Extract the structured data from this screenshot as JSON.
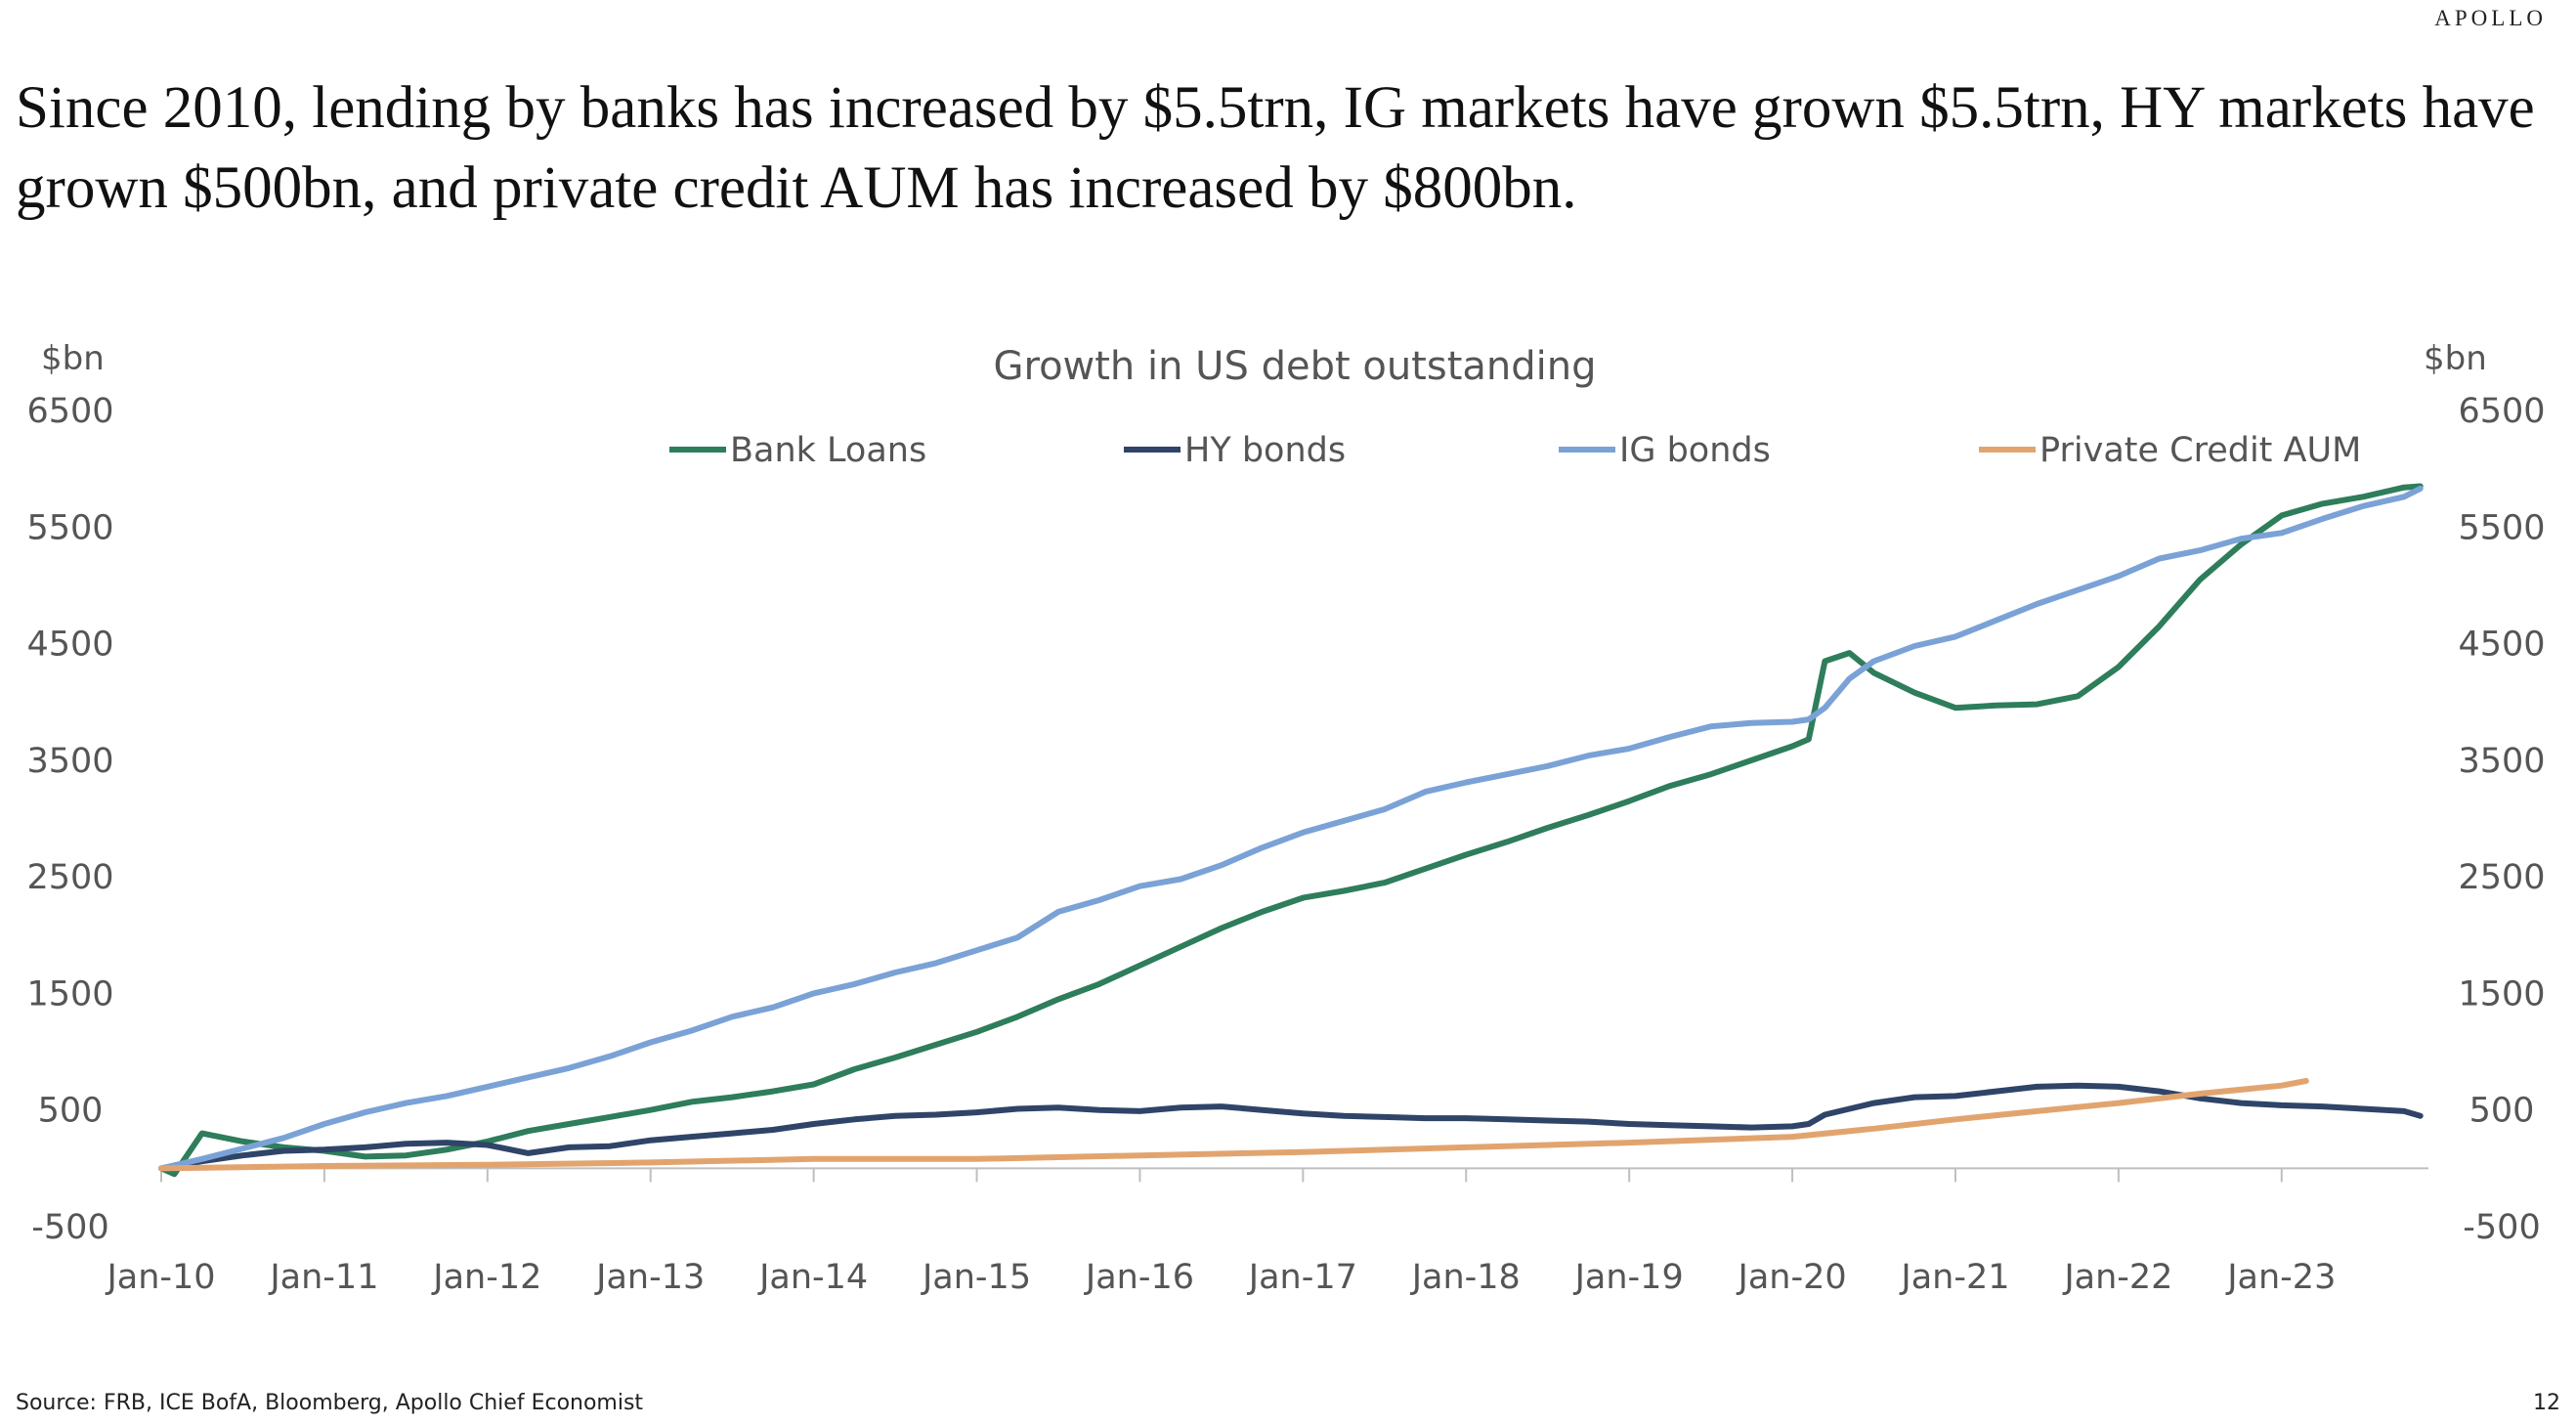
{
  "brand": "APOLLO",
  "headline": "Since 2010, lending by banks has increased by $5.5trn, IG markets have grown $5.5trn, HY markets have grown $500bn, and private credit AUM has increased by $800bn.",
  "footer": {
    "source": "Source: FRB, ICE BofA, Bloomberg, Apollo Chief Economist",
    "page_number": "12"
  },
  "chart_data": {
    "type": "line",
    "title": "Growth in US debt outstanding",
    "ylabel_left": "$bn",
    "ylabel_right": "$bn",
    "ylim": [
      -500,
      6500
    ],
    "yticks": [
      -500,
      500,
      1500,
      2500,
      3500,
      4500,
      5500,
      6500
    ],
    "y_tick_labels": [
      "-500",
      "500",
      "1500",
      "2500",
      "3500",
      "4500",
      "5500",
      "6500"
    ],
    "x_range": [
      2010.0,
      2023.9
    ],
    "xticks": [
      2010,
      2011,
      2012,
      2013,
      2014,
      2015,
      2016,
      2017,
      2018,
      2019,
      2020,
      2021,
      2022,
      2023
    ],
    "x_tick_labels": [
      "Jan-10",
      "Jan-11",
      "Jan-12",
      "Jan-13",
      "Jan-14",
      "Jan-15",
      "Jan-16",
      "Jan-17",
      "Jan-18",
      "Jan-19",
      "Jan-20",
      "Jan-21",
      "Jan-22",
      "Jan-23"
    ],
    "grid": false,
    "legend_position": "top",
    "series": [
      {
        "name": "Bank Loans",
        "color": "#2e7d5b",
        "points": [
          [
            2010.0,
            0
          ],
          [
            2010.08,
            -50
          ],
          [
            2010.25,
            300
          ],
          [
            2010.5,
            230
          ],
          [
            2010.75,
            180
          ],
          [
            2011.0,
            150
          ],
          [
            2011.25,
            100
          ],
          [
            2011.5,
            110
          ],
          [
            2011.75,
            160
          ],
          [
            2012.0,
            230
          ],
          [
            2012.25,
            320
          ],
          [
            2012.5,
            380
          ],
          [
            2012.75,
            440
          ],
          [
            2013.0,
            500
          ],
          [
            2013.25,
            570
          ],
          [
            2013.5,
            610
          ],
          [
            2013.75,
            660
          ],
          [
            2014.0,
            720
          ],
          [
            2014.25,
            850
          ],
          [
            2014.5,
            950
          ],
          [
            2014.75,
            1060
          ],
          [
            2015.0,
            1170
          ],
          [
            2015.25,
            1300
          ],
          [
            2015.5,
            1450
          ],
          [
            2015.75,
            1580
          ],
          [
            2016.0,
            1740
          ],
          [
            2016.25,
            1900
          ],
          [
            2016.5,
            2060
          ],
          [
            2016.75,
            2200
          ],
          [
            2017.0,
            2320
          ],
          [
            2017.25,
            2380
          ],
          [
            2017.5,
            2450
          ],
          [
            2017.75,
            2570
          ],
          [
            2018.0,
            2690
          ],
          [
            2018.25,
            2800
          ],
          [
            2018.5,
            2920
          ],
          [
            2018.75,
            3030
          ],
          [
            2019.0,
            3150
          ],
          [
            2019.25,
            3280
          ],
          [
            2019.5,
            3380
          ],
          [
            2019.75,
            3500
          ],
          [
            2020.0,
            3620
          ],
          [
            2020.1,
            3680
          ],
          [
            2020.2,
            4350
          ],
          [
            2020.35,
            4420
          ],
          [
            2020.5,
            4250
          ],
          [
            2020.75,
            4080
          ],
          [
            2021.0,
            3950
          ],
          [
            2021.25,
            3970
          ],
          [
            2021.5,
            3980
          ],
          [
            2021.75,
            4050
          ],
          [
            2022.0,
            4300
          ],
          [
            2022.25,
            4650
          ],
          [
            2022.5,
            5050
          ],
          [
            2022.75,
            5350
          ],
          [
            2023.0,
            5600
          ],
          [
            2023.25,
            5700
          ],
          [
            2023.5,
            5760
          ],
          [
            2023.75,
            5840
          ],
          [
            2023.85,
            5850
          ]
        ]
      },
      {
        "name": "HY bonds",
        "color": "#2f4468",
        "points": [
          [
            2010.0,
            0
          ],
          [
            2010.25,
            60
          ],
          [
            2010.5,
            110
          ],
          [
            2010.75,
            150
          ],
          [
            2011.0,
            160
          ],
          [
            2011.25,
            180
          ],
          [
            2011.5,
            210
          ],
          [
            2011.75,
            220
          ],
          [
            2012.0,
            200
          ],
          [
            2012.25,
            130
          ],
          [
            2012.5,
            180
          ],
          [
            2012.75,
            190
          ],
          [
            2013.0,
            240
          ],
          [
            2013.25,
            270
          ],
          [
            2013.5,
            300
          ],
          [
            2013.75,
            330
          ],
          [
            2014.0,
            380
          ],
          [
            2014.25,
            420
          ],
          [
            2014.5,
            450
          ],
          [
            2014.75,
            460
          ],
          [
            2015.0,
            480
          ],
          [
            2015.25,
            510
          ],
          [
            2015.5,
            520
          ],
          [
            2015.75,
            500
          ],
          [
            2016.0,
            490
          ],
          [
            2016.25,
            520
          ],
          [
            2016.5,
            530
          ],
          [
            2016.75,
            500
          ],
          [
            2017.0,
            470
          ],
          [
            2017.25,
            450
          ],
          [
            2017.5,
            440
          ],
          [
            2017.75,
            430
          ],
          [
            2018.0,
            430
          ],
          [
            2018.25,
            420
          ],
          [
            2018.5,
            410
          ],
          [
            2018.75,
            400
          ],
          [
            2019.0,
            380
          ],
          [
            2019.25,
            370
          ],
          [
            2019.5,
            360
          ],
          [
            2019.75,
            350
          ],
          [
            2020.0,
            360
          ],
          [
            2020.1,
            380
          ],
          [
            2020.2,
            460
          ],
          [
            2020.5,
            560
          ],
          [
            2020.75,
            610
          ],
          [
            2021.0,
            620
          ],
          [
            2021.25,
            660
          ],
          [
            2021.5,
            700
          ],
          [
            2021.75,
            710
          ],
          [
            2022.0,
            700
          ],
          [
            2022.25,
            660
          ],
          [
            2022.5,
            600
          ],
          [
            2022.75,
            560
          ],
          [
            2023.0,
            540
          ],
          [
            2023.25,
            530
          ],
          [
            2023.5,
            510
          ],
          [
            2023.75,
            490
          ],
          [
            2023.85,
            450
          ]
        ]
      },
      {
        "name": "IG bonds",
        "color": "#7aa2d6",
        "points": [
          [
            2010.0,
            0
          ],
          [
            2010.25,
            80
          ],
          [
            2010.5,
            170
          ],
          [
            2010.75,
            260
          ],
          [
            2011.0,
            380
          ],
          [
            2011.25,
            480
          ],
          [
            2011.5,
            560
          ],
          [
            2011.75,
            620
          ],
          [
            2012.0,
            700
          ],
          [
            2012.25,
            780
          ],
          [
            2012.5,
            860
          ],
          [
            2012.75,
            960
          ],
          [
            2013.0,
            1080
          ],
          [
            2013.25,
            1180
          ],
          [
            2013.5,
            1300
          ],
          [
            2013.75,
            1380
          ],
          [
            2014.0,
            1500
          ],
          [
            2014.25,
            1580
          ],
          [
            2014.5,
            1680
          ],
          [
            2014.75,
            1760
          ],
          [
            2015.0,
            1870
          ],
          [
            2015.25,
            1980
          ],
          [
            2015.5,
            2200
          ],
          [
            2015.75,
            2300
          ],
          [
            2016.0,
            2420
          ],
          [
            2016.25,
            2480
          ],
          [
            2016.5,
            2600
          ],
          [
            2016.75,
            2750
          ],
          [
            2017.0,
            2880
          ],
          [
            2017.25,
            2980
          ],
          [
            2017.5,
            3080
          ],
          [
            2017.75,
            3230
          ],
          [
            2018.0,
            3310
          ],
          [
            2018.25,
            3380
          ],
          [
            2018.5,
            3450
          ],
          [
            2018.75,
            3540
          ],
          [
            2019.0,
            3600
          ],
          [
            2019.25,
            3700
          ],
          [
            2019.5,
            3790
          ],
          [
            2019.75,
            3820
          ],
          [
            2020.0,
            3830
          ],
          [
            2020.1,
            3850
          ],
          [
            2020.2,
            3950
          ],
          [
            2020.35,
            4200
          ],
          [
            2020.5,
            4350
          ],
          [
            2020.75,
            4480
          ],
          [
            2021.0,
            4560
          ],
          [
            2021.25,
            4700
          ],
          [
            2021.5,
            4840
          ],
          [
            2021.75,
            4960
          ],
          [
            2022.0,
            5080
          ],
          [
            2022.25,
            5230
          ],
          [
            2022.5,
            5300
          ],
          [
            2022.75,
            5400
          ],
          [
            2023.0,
            5450
          ],
          [
            2023.25,
            5570
          ],
          [
            2023.5,
            5680
          ],
          [
            2023.75,
            5760
          ],
          [
            2023.85,
            5830
          ]
        ]
      },
      {
        "name": "Private Credit AUM",
        "color": "#e2a46f",
        "points": [
          [
            2010.0,
            0
          ],
          [
            2011.0,
            20
          ],
          [
            2012.0,
            30
          ],
          [
            2013.0,
            50
          ],
          [
            2014.0,
            80
          ],
          [
            2015.0,
            80
          ],
          [
            2016.0,
            110
          ],
          [
            2017.0,
            140
          ],
          [
            2018.0,
            180
          ],
          [
            2019.0,
            220
          ],
          [
            2020.0,
            270
          ],
          [
            2020.5,
            340
          ],
          [
            2021.0,
            420
          ],
          [
            2021.5,
            490
          ],
          [
            2022.0,
            560
          ],
          [
            2022.5,
            640
          ],
          [
            2023.0,
            710
          ],
          [
            2023.15,
            750
          ]
        ]
      }
    ]
  }
}
